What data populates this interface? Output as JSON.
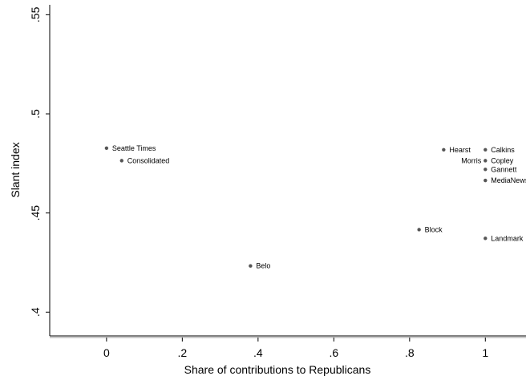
{
  "chart_data": {
    "type": "scatter",
    "xlabel": "Share of contributions to Republicans",
    "ylabel": "Slant index",
    "xlim": [
      -0.15,
      1.12
    ],
    "ylim": [
      0.388,
      0.555
    ],
    "x_ticks": [
      0,
      0.2,
      0.4,
      0.6,
      0.8,
      1
    ],
    "x_tick_labels": [
      "0",
      ".2",
      ".4",
      ".6",
      ".8",
      "1"
    ],
    "y_ticks": [
      0.4,
      0.45,
      0.5,
      0.55
    ],
    "y_tick_labels": [
      ".4",
      ".45",
      ".5",
      ".55"
    ],
    "grid": false,
    "point_color": "#555555",
    "points": [
      {
        "label": "Seattle Times",
        "x": 0.0,
        "y": 0.4827,
        "label_side": "right"
      },
      {
        "label": "Consolidated",
        "x": 0.04,
        "y": 0.4764,
        "label_side": "right"
      },
      {
        "label": "Belo",
        "x": 0.38,
        "y": 0.4233,
        "label_side": "right"
      },
      {
        "label": "Block",
        "x": 0.825,
        "y": 0.4416,
        "label_side": "right"
      },
      {
        "label": "Hearst",
        "x": 0.89,
        "y": 0.4819,
        "label_side": "right"
      },
      {
        "label": "Calkins",
        "x": 1.0,
        "y": 0.4819,
        "label_side": "right"
      },
      {
        "label": "Copley",
        "x": 1.0,
        "y": 0.4764,
        "label_side": "right"
      },
      {
        "label": "Morris",
        "x": 1.0,
        "y": 0.4764,
        "label_side": "left"
      },
      {
        "label": "Gannett",
        "x": 1.0,
        "y": 0.472,
        "label_side": "right"
      },
      {
        "label": "MediaNews",
        "x": 1.0,
        "y": 0.4664,
        "label_side": "right"
      },
      {
        "label": "Landmark",
        "x": 1.0,
        "y": 0.4372,
        "label_side": "right"
      }
    ]
  }
}
